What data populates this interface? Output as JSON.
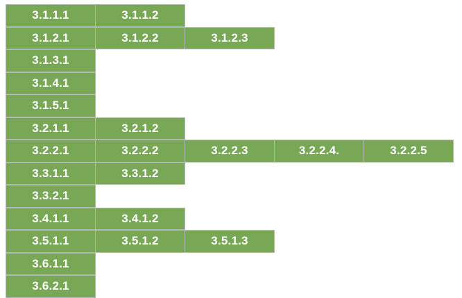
{
  "colors": {
    "cell_fill": "#78a855",
    "cell_border": "#b5b9b5",
    "cell_text": "#ffffff"
  },
  "rows": [
    [
      "3.1.1.1",
      "3.1.1.2"
    ],
    [
      "3.1.2.1",
      "3.1.2.2",
      "3.1.2.3"
    ],
    [
      "3.1.3.1"
    ],
    [
      "3.1.4.1"
    ],
    [
      "3.1.5.1"
    ],
    [
      "3.2.1.1",
      "3.2.1.2"
    ],
    [
      "3.2.2.1",
      "3.2.2.2",
      "3.2.2.3",
      "3.2.2.4.",
      "3.2.2.5"
    ],
    [
      "3.3.1.1",
      "3.3.1.2"
    ],
    [
      "3.3.2.1"
    ],
    [
      "3.4.1.1",
      "3.4.1.2"
    ],
    [
      "3.5.1.1",
      "3.5.1.2",
      "3.5.1.3"
    ],
    [
      "3.6.1.1"
    ],
    [
      "3.6.2.1"
    ]
  ]
}
